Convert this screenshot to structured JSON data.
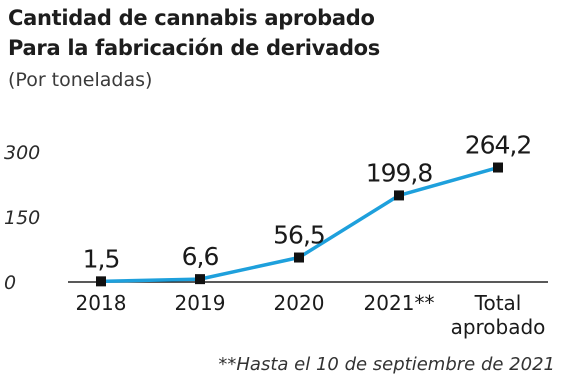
{
  "chart_data": {
    "type": "line",
    "title": "Cantidad de cannabis aprobado",
    "subtitle": "Para la fabricación de derivados",
    "unit_note": "(Por toneladas)",
    "categories": [
      "2018",
      "2019",
      "2020",
      "2021**",
      "Total aprobado"
    ],
    "series": [
      {
        "values": [
          1.5,
          6.6,
          56.5,
          199.8,
          264.2
        ],
        "labels": [
          "1,5",
          "6,6",
          "56,5",
          "199,8",
          "264,2"
        ]
      }
    ],
    "y_ticks": [
      0,
      150,
      300
    ],
    "y_tick_labels": [
      "0",
      "150",
      "300"
    ],
    "ylim": [
      0,
      300
    ],
    "grid": false,
    "footnote": "**Hasta el 10 de septiembre de 2021",
    "colors": {
      "line": "#1ea0dc",
      "marker": "#111111",
      "axis": "#222222",
      "text": "#1a1a1a"
    }
  }
}
